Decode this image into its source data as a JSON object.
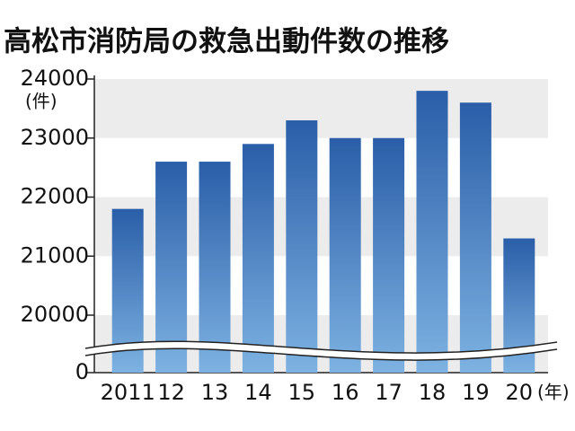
{
  "chart_data": {
    "type": "bar",
    "title": "高松市消防局の救急出動件数の推移",
    "y_unit": "(件)",
    "x_unit": "(年)",
    "categories": [
      "2011",
      "12",
      "13",
      "14",
      "15",
      "16",
      "17",
      "18",
      "19",
      "20"
    ],
    "values": [
      21800,
      22600,
      22600,
      22900,
      23300,
      23000,
      23000,
      23800,
      23600,
      21300
    ],
    "ylim": [
      0,
      24000
    ],
    "yticks": [
      0,
      20000,
      21000,
      22000,
      23000,
      24000
    ],
    "axis_break": true,
    "grid": true,
    "color": "#2c63ad"
  }
}
